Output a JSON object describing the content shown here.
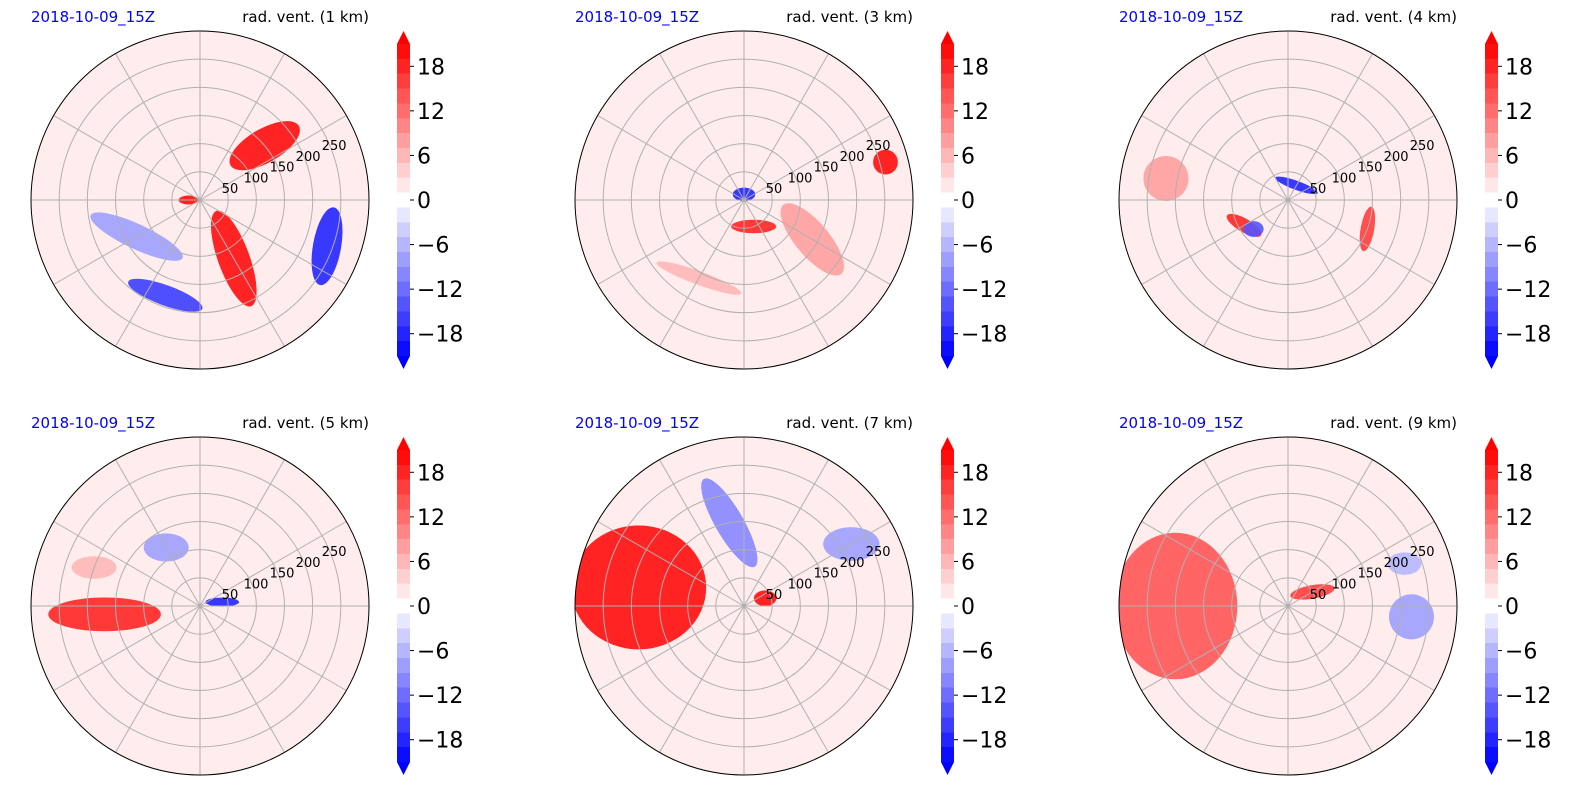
{
  "colors": {
    "positive": "#ff0000",
    "negative": "#0000ff",
    "date_label": "#0000ff",
    "grid": "#b0b0b0"
  },
  "colorbar": {
    "ticks": [
      "18",
      "12",
      "6",
      "0",
      "−6",
      "−12",
      "−18"
    ],
    "tick_values": [
      18,
      12,
      6,
      0,
      -6,
      -12,
      -18
    ],
    "range": [
      -21,
      21
    ],
    "levels": 21,
    "extend": "both"
  },
  "radial_ticks": [
    "50",
    "100",
    "150",
    "200",
    "250"
  ],
  "chart_data": [
    {
      "type": "heatmap",
      "projection": "polar",
      "date_label": "2018-10-09_15Z",
      "title": "rad. vent. (1 km)",
      "radial_ticks": [
        50,
        100,
        150,
        200,
        250
      ],
      "colorbar_range": [
        -21,
        21
      ]
    },
    {
      "type": "heatmap",
      "projection": "polar",
      "date_label": "2018-10-09_15Z",
      "title": "rad. vent. (3 km)",
      "radial_ticks": [
        50,
        100,
        150,
        200,
        250
      ],
      "colorbar_range": [
        -21,
        21
      ]
    },
    {
      "type": "heatmap",
      "projection": "polar",
      "date_label": "2018-10-09_15Z",
      "title": "rad. vent. (4 km)",
      "radial_ticks": [
        50,
        100,
        150,
        200,
        250
      ],
      "colorbar_range": [
        -21,
        21
      ]
    },
    {
      "type": "heatmap",
      "projection": "polar",
      "date_label": "2018-10-09_15Z",
      "title": "rad. vent. (5 km)",
      "radial_ticks": [
        50,
        100,
        150,
        200,
        250
      ],
      "colorbar_range": [
        -21,
        21
      ]
    },
    {
      "type": "heatmap",
      "projection": "polar",
      "date_label": "2018-10-09_15Z",
      "title": "rad. vent. (7 km)",
      "radial_ticks": [
        50,
        100,
        150,
        200,
        250
      ],
      "colorbar_range": [
        -21,
        21
      ]
    },
    {
      "type": "heatmap",
      "projection": "polar",
      "date_label": "2018-10-09_15Z",
      "title": "rad. vent. (9 km)",
      "radial_ticks": [
        50,
        100,
        150,
        200,
        250
      ],
      "colorbar_range": [
        -21,
        21
      ]
    }
  ]
}
